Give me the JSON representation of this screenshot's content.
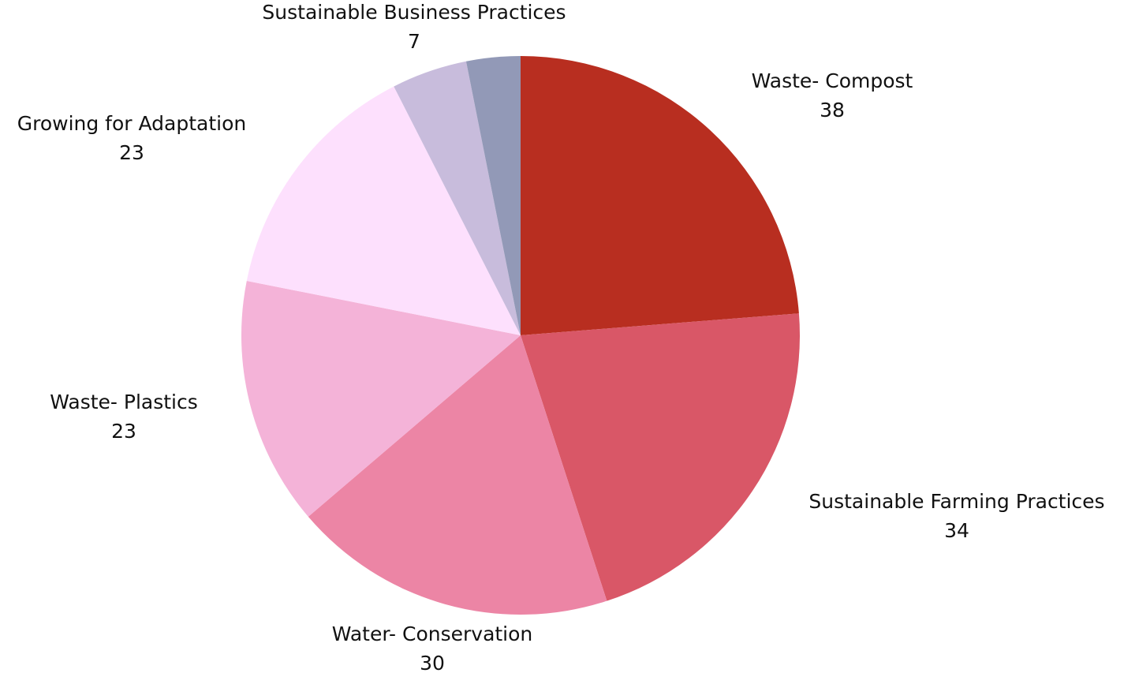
{
  "chart_data": {
    "type": "pie",
    "title": "",
    "start_angle_deg": 0,
    "direction": "clockwise",
    "slices": [
      {
        "label": "Waste- Compost",
        "value": 38,
        "value_label": "38",
        "color": "#b82e20"
      },
      {
        "label": "Sustainable Farming Practices",
        "value": 34,
        "value_label": "34",
        "color": "#d95767"
      },
      {
        "label": "Water- Conservation",
        "value": 30,
        "value_label": "30",
        "color": "#ec85a5"
      },
      {
        "label": "Waste- Plastics",
        "value": 23,
        "value_label": "23",
        "color": "#f4b3d8"
      },
      {
        "label": "Growing for Adaptation",
        "value": 23,
        "value_label": "23",
        "color": "#fde0fd"
      },
      {
        "label": "Sustainable Business Practices",
        "value": 7,
        "value_label": "7",
        "color": "#c8bcdc"
      },
      {
        "label": "",
        "value": 5,
        "value_label": "",
        "color": "#9299b7"
      }
    ]
  }
}
